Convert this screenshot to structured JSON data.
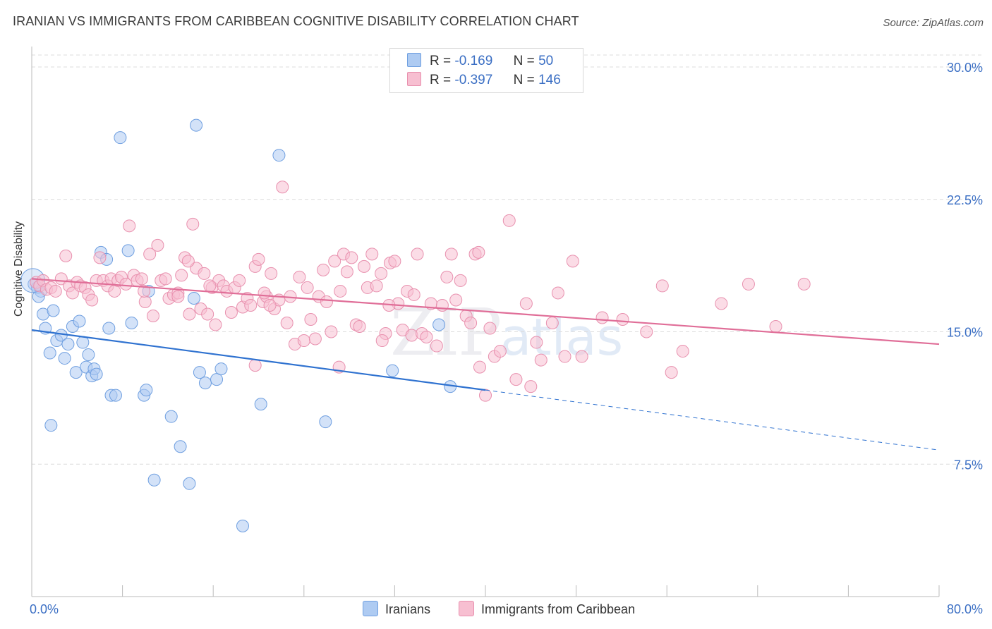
{
  "header": {
    "title": "IRANIAN VS IMMIGRANTS FROM CARIBBEAN COGNITIVE DISABILITY CORRELATION CHART",
    "source": "Source: ZipAtlas.com"
  },
  "watermark": {
    "zip": "ZIP",
    "atlas": "atlas"
  },
  "legend": {
    "r_label": "R =",
    "n_label": "N =",
    "rows": [
      {
        "r": "-0.169",
        "n": "50",
        "color": "#aecbf2",
        "border": "#6f9fe0"
      },
      {
        "r": "-0.397",
        "n": "146",
        "color": "#f7bfd1",
        "border": "#e890ae"
      }
    ]
  },
  "bottom_legend": [
    {
      "label": "Iranians",
      "color": "#aecbf2",
      "border": "#6f9fe0"
    },
    {
      "label": "Immigrants from Caribbean",
      "color": "#f7bfd1",
      "border": "#e890ae"
    }
  ],
  "chart_data": {
    "type": "scatter",
    "title": "IRANIAN VS IMMIGRANTS FROM CARIBBEAN COGNITIVE DISABILITY CORRELATION CHART",
    "ylabel": "Cognitive Disability",
    "xlim": [
      0,
      80
    ],
    "ylim": [
      0,
      31
    ],
    "x_tick_labels": [
      "0.0%",
      "80.0%"
    ],
    "y_ticks": [
      7.5,
      15.0,
      22.5,
      30.0
    ],
    "y_tick_labels": [
      "7.5%",
      "15.0%",
      "22.5%",
      "30.0%"
    ],
    "grid": true,
    "series": [
      {
        "name": "Iranians",
        "color": "#aecbf2",
        "stroke": "#6f9fe0",
        "line_color": "#2f72d0",
        "trend": {
          "x_start": 0,
          "y_start": 15.1,
          "x_solid_end": 40,
          "y_solid_end": 11.7,
          "x_end": 80,
          "y_end": 8.3
        },
        "points": [
          [
            0.2,
            17.7
          ],
          [
            0.5,
            17.5
          ],
          [
            0.8,
            17.3
          ],
          [
            1.0,
            16.0
          ],
          [
            1.2,
            15.2
          ],
          [
            1.6,
            13.8
          ],
          [
            1.9,
            16.2
          ],
          [
            2.2,
            14.5
          ],
          [
            2.6,
            14.8
          ],
          [
            2.9,
            13.5
          ],
          [
            3.2,
            14.3
          ],
          [
            3.6,
            15.3
          ],
          [
            3.9,
            12.7
          ],
          [
            4.2,
            15.6
          ],
          [
            4.5,
            14.4
          ],
          [
            4.8,
            13.0
          ],
          [
            5.0,
            13.7
          ],
          [
            5.3,
            12.5
          ],
          [
            5.5,
            12.9
          ],
          [
            5.7,
            12.6
          ],
          [
            6.1,
            19.5
          ],
          [
            6.6,
            19.1
          ],
          [
            6.8,
            15.2
          ],
          [
            7.0,
            11.4
          ],
          [
            7.4,
            11.4
          ],
          [
            7.8,
            26.0
          ],
          [
            8.5,
            19.6
          ],
          [
            8.8,
            15.5
          ],
          [
            9.9,
            11.4
          ],
          [
            10.1,
            11.7
          ],
          [
            10.3,
            17.3
          ],
          [
            10.8,
            6.6
          ],
          [
            12.3,
            10.2
          ],
          [
            13.1,
            8.5
          ],
          [
            13.9,
            6.4
          ],
          [
            14.3,
            16.9
          ],
          [
            14.5,
            26.7
          ],
          [
            14.8,
            12.7
          ],
          [
            15.3,
            12.1
          ],
          [
            16.3,
            12.3
          ],
          [
            16.7,
            12.9
          ],
          [
            18.6,
            4.0
          ],
          [
            20.2,
            10.9
          ],
          [
            21.8,
            25.0
          ],
          [
            25.9,
            9.9
          ],
          [
            31.8,
            12.8
          ],
          [
            35.9,
            15.4
          ],
          [
            36.9,
            11.9
          ],
          [
            1.7,
            9.7
          ],
          [
            0.6,
            17.0
          ]
        ]
      },
      {
        "name": "Immigrants from Caribbean",
        "color": "#f7bfd1",
        "stroke": "#e890ae",
        "line_color": "#e06e98",
        "trend": {
          "x_start": 0,
          "y_start": 18.0,
          "x_end": 80,
          "y_end": 14.3
        },
        "points": [
          [
            0.4,
            17.8
          ],
          [
            0.7,
            17.6
          ],
          [
            1.0,
            17.9
          ],
          [
            1.3,
            17.4
          ],
          [
            1.7,
            17.5
          ],
          [
            2.1,
            17.3
          ],
          [
            2.6,
            18.0
          ],
          [
            3.0,
            19.3
          ],
          [
            3.3,
            17.6
          ],
          [
            3.6,
            17.2
          ],
          [
            4.0,
            17.8
          ],
          [
            4.3,
            17.6
          ],
          [
            4.7,
            17.5
          ],
          [
            5.0,
            17.1
          ],
          [
            5.3,
            16.8
          ],
          [
            5.7,
            17.9
          ],
          [
            6.0,
            19.2
          ],
          [
            6.3,
            17.9
          ],
          [
            6.7,
            17.6
          ],
          [
            7.0,
            18.0
          ],
          [
            7.3,
            17.3
          ],
          [
            7.6,
            17.9
          ],
          [
            7.9,
            18.1
          ],
          [
            8.3,
            17.7
          ],
          [
            8.6,
            21.0
          ],
          [
            9.0,
            18.2
          ],
          [
            9.3,
            17.9
          ],
          [
            9.7,
            18.0
          ],
          [
            10.0,
            16.7
          ],
          [
            10.4,
            19.4
          ],
          [
            10.7,
            15.9
          ],
          [
            11.1,
            19.9
          ],
          [
            11.4,
            17.9
          ],
          [
            11.8,
            18.0
          ],
          [
            12.1,
            16.9
          ],
          [
            12.5,
            17.1
          ],
          [
            12.9,
            17.2
          ],
          [
            13.2,
            18.2
          ],
          [
            13.5,
            19.2
          ],
          [
            13.9,
            16.0
          ],
          [
            14.2,
            21.1
          ],
          [
            14.5,
            18.6
          ],
          [
            14.9,
            16.3
          ],
          [
            15.2,
            18.3
          ],
          [
            15.5,
            16.0
          ],
          [
            15.9,
            17.5
          ],
          [
            16.2,
            15.4
          ],
          [
            16.5,
            17.9
          ],
          [
            16.9,
            17.6
          ],
          [
            17.2,
            17.3
          ],
          [
            17.6,
            16.1
          ],
          [
            17.9,
            17.5
          ],
          [
            18.3,
            17.9
          ],
          [
            18.6,
            16.4
          ],
          [
            19.0,
            16.9
          ],
          [
            19.3,
            16.5
          ],
          [
            19.7,
            18.7
          ],
          [
            20.0,
            19.1
          ],
          [
            20.4,
            16.7
          ],
          [
            20.7,
            17.0
          ],
          [
            21.1,
            18.3
          ],
          [
            21.4,
            16.3
          ],
          [
            21.8,
            16.8
          ],
          [
            22.1,
            23.2
          ],
          [
            22.5,
            15.5
          ],
          [
            22.8,
            17.0
          ],
          [
            23.2,
            14.3
          ],
          [
            23.6,
            18.1
          ],
          [
            24.0,
            14.5
          ],
          [
            24.3,
            17.5
          ],
          [
            24.6,
            15.7
          ],
          [
            25.0,
            14.6
          ],
          [
            25.3,
            17.0
          ],
          [
            25.7,
            18.5
          ],
          [
            26.0,
            16.7
          ],
          [
            26.4,
            15.0
          ],
          [
            26.7,
            19.0
          ],
          [
            27.1,
            13.0
          ],
          [
            27.5,
            19.4
          ],
          [
            27.8,
            18.4
          ],
          [
            28.2,
            19.2
          ],
          [
            28.6,
            15.4
          ],
          [
            28.9,
            15.3
          ],
          [
            29.3,
            18.7
          ],
          [
            29.6,
            17.5
          ],
          [
            30.0,
            19.4
          ],
          [
            30.4,
            17.6
          ],
          [
            30.8,
            18.3
          ],
          [
            31.2,
            14.9
          ],
          [
            31.6,
            18.9
          ],
          [
            32.0,
            19.0
          ],
          [
            32.3,
            16.6
          ],
          [
            32.7,
            15.1
          ],
          [
            33.1,
            17.3
          ],
          [
            33.5,
            14.8
          ],
          [
            34.0,
            19.4
          ],
          [
            34.4,
            14.9
          ],
          [
            34.8,
            14.7
          ],
          [
            35.2,
            16.6
          ],
          [
            35.7,
            14.2
          ],
          [
            36.2,
            16.5
          ],
          [
            36.6,
            18.1
          ],
          [
            37.0,
            19.4
          ],
          [
            37.4,
            16.8
          ],
          [
            37.8,
            17.9
          ],
          [
            38.3,
            15.9
          ],
          [
            38.7,
            15.5
          ],
          [
            39.1,
            19.4
          ],
          [
            39.5,
            13.0
          ],
          [
            40.0,
            11.4
          ],
          [
            40.4,
            15.2
          ],
          [
            40.8,
            13.6
          ],
          [
            41.3,
            13.9
          ],
          [
            42.1,
            21.3
          ],
          [
            42.7,
            12.3
          ],
          [
            43.6,
            16.6
          ],
          [
            44.0,
            11.9
          ],
          [
            44.5,
            14.4
          ],
          [
            44.9,
            13.4
          ],
          [
            45.9,
            15.5
          ],
          [
            46.4,
            17.2
          ],
          [
            47.0,
            13.6
          ],
          [
            47.7,
            19.0
          ],
          [
            48.5,
            13.6
          ],
          [
            50.3,
            15.8
          ],
          [
            52.1,
            15.7
          ],
          [
            54.2,
            15.0
          ],
          [
            55.6,
            17.6
          ],
          [
            56.4,
            12.7
          ],
          [
            57.4,
            13.9
          ],
          [
            60.8,
            16.6
          ],
          [
            63.2,
            17.7
          ],
          [
            65.6,
            15.3
          ],
          [
            68.1,
            17.7
          ],
          [
            21.0,
            16.5
          ],
          [
            15.7,
            17.6
          ],
          [
            12.9,
            17.0
          ],
          [
            20.5,
            17.2
          ],
          [
            27.2,
            17.3
          ],
          [
            31.5,
            16.5
          ],
          [
            33.7,
            17.1
          ],
          [
            9.9,
            17.3
          ],
          [
            19.7,
            13.1
          ],
          [
            39.4,
            19.5
          ],
          [
            13.8,
            19.0
          ],
          [
            30.9,
            14.5
          ]
        ]
      }
    ]
  }
}
